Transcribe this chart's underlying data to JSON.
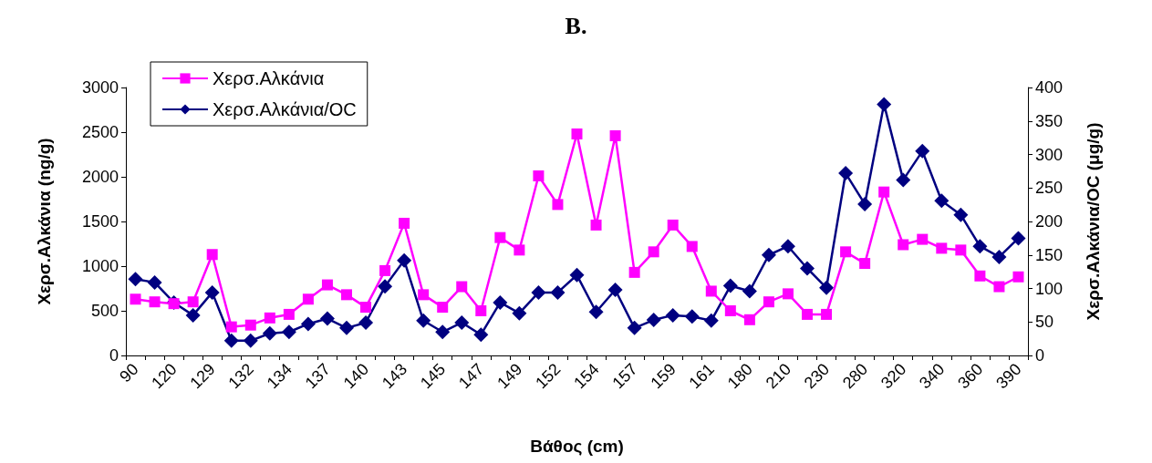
{
  "chart_data": {
    "type": "line",
    "title": "B.",
    "xlabel": "Βάθος (cm)",
    "ylabel": "Χερσ.Αλκάνια (ng/g)",
    "y2label": "Χερσ.Αλκάνια/OC (μg/g)",
    "categories": [
      "90",
      null,
      "120",
      null,
      "129",
      null,
      "132",
      null,
      "134",
      null,
      "137",
      null,
      "140",
      null,
      "143",
      null,
      "145",
      null,
      "147",
      null,
      "149",
      null,
      "152",
      null,
      "154",
      null,
      "157",
      null,
      "159",
      null,
      "161",
      null,
      "180",
      null,
      "210",
      null,
      "230",
      null,
      "280",
      null,
      "320",
      null,
      "340",
      null,
      "360",
      null,
      "390"
    ],
    "series": [
      {
        "name": "Χερσ.Αλκάνια",
        "color": "#ff00ff",
        "marker": "square",
        "values": [
          630,
          600,
          580,
          600,
          1130,
          320,
          340,
          420,
          460,
          630,
          790,
          680,
          540,
          950,
          1480,
          680,
          540,
          770,
          500,
          1320,
          1180,
          2010,
          1690,
          2480,
          1460,
          2460,
          930,
          1160,
          1460,
          1220,
          720,
          500,
          400,
          600,
          690,
          460,
          460,
          1160,
          1030,
          1830,
          1240,
          1300,
          1200,
          1180,
          890,
          770,
          880
        ]
      },
      {
        "name": "Χερσ.Αλκάνια/OC",
        "color": "#000080",
        "marker": "diamond",
        "axis": "y2",
        "values": [
          114,
          109,
          79,
          60,
          94,
          22,
          22,
          33,
          35,
          47,
          55,
          41,
          49,
          103,
          142,
          52,
          35,
          49,
          31,
          79,
          63,
          94,
          94,
          120,
          65,
          98,
          41,
          53,
          60,
          58,
          52,
          104,
          96,
          150,
          163,
          130,
          101,
          272,
          226,
          375,
          262,
          305,
          231,
          210,
          163,
          147,
          175
        ]
      }
    ],
    "ylim": [
      0,
      3000
    ],
    "yticks": [
      0,
      500,
      1000,
      1500,
      2000,
      2500,
      3000
    ],
    "y2lim": [
      0,
      400
    ],
    "y2ticks": [
      0,
      50,
      100,
      150,
      200,
      250,
      300,
      350,
      400
    ],
    "grid": false,
    "legend": "top left",
    "line_style": "solid"
  }
}
